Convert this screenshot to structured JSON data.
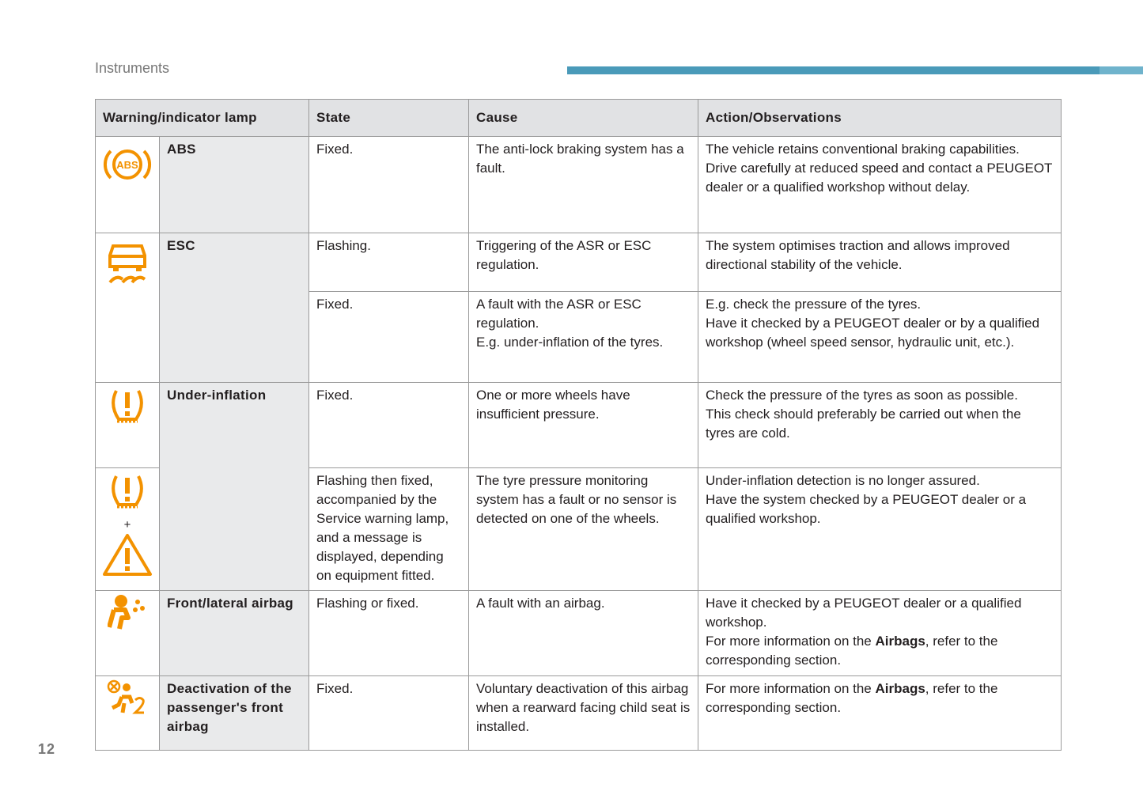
{
  "header": {
    "section": "Instruments"
  },
  "table": {
    "columns": [
      "Warning/indicator lamp",
      "State",
      "Cause",
      "Action/Observations"
    ],
    "rows": [
      {
        "name": "ABS",
        "entries": [
          {
            "state": "Fixed.",
            "cause": [
              "The anti-lock braking system has a fault."
            ],
            "action": [
              "The vehicle retains conventional braking capabilities.",
              "Drive carefully at reduced speed and contact a PEUGEOT dealer or a qualified workshop without delay."
            ]
          }
        ]
      },
      {
        "name": "ESC",
        "entries": [
          {
            "state": "Flashing.",
            "cause": [
              "Triggering of the ASR or ESC regulation."
            ],
            "action": [
              "The system optimises traction and allows improved directional stability of the vehicle."
            ]
          },
          {
            "state": "Fixed.",
            "cause": [
              "A fault with the ASR or ESC regulation.",
              "E.g. under-inflation of the tyres."
            ],
            "action": [
              "E.g. check the pressure of the tyres.",
              "Have it checked by a PEUGEOT dealer or by a qualified workshop (wheel speed sensor, hydraulic unit, etc.)."
            ]
          }
        ]
      },
      {
        "name": "Under-inflation",
        "icon_joiner": "+",
        "entries": [
          {
            "state": "Fixed.",
            "cause": [
              "One or more wheels have insufficient pressure."
            ],
            "action": [
              "Check the pressure of the tyres as soon as possible.",
              "This check should preferably be carried out when the tyres are cold."
            ]
          },
          {
            "state": "Flashing then fixed, accompanied by the Service warning lamp, and a message is displayed, depending on equipment fitted.",
            "cause": [
              "The tyre pressure monitoring system has a fault or no sensor is detected on one of the wheels."
            ],
            "action": [
              "Under-inflation detection is no longer assured.",
              "Have the system checked by a PEUGEOT dealer or a qualified workshop."
            ]
          }
        ]
      },
      {
        "name": "Front/lateral airbag",
        "entries": [
          {
            "state": "Flashing or fixed.",
            "cause": [
              "A fault with an airbag."
            ],
            "action": [
              "Have it checked by a PEUGEOT dealer or a qualified workshop.",
              {
                "before": "For more information on the ",
                "bold": "Airbags",
                "after": ", refer to the corresponding section."
              }
            ]
          }
        ]
      },
      {
        "name": "Deactivation of the passenger's front airbag",
        "entries": [
          {
            "state": "Fixed.",
            "cause": [
              "Voluntary deactivation of this airbag when a rearward facing child seat is installed."
            ],
            "action": [
              {
                "before": "For more information on the ",
                "bold": "Airbags",
                "after": ", refer to the corresponding section."
              }
            ]
          }
        ]
      }
    ]
  },
  "page_number": "12"
}
